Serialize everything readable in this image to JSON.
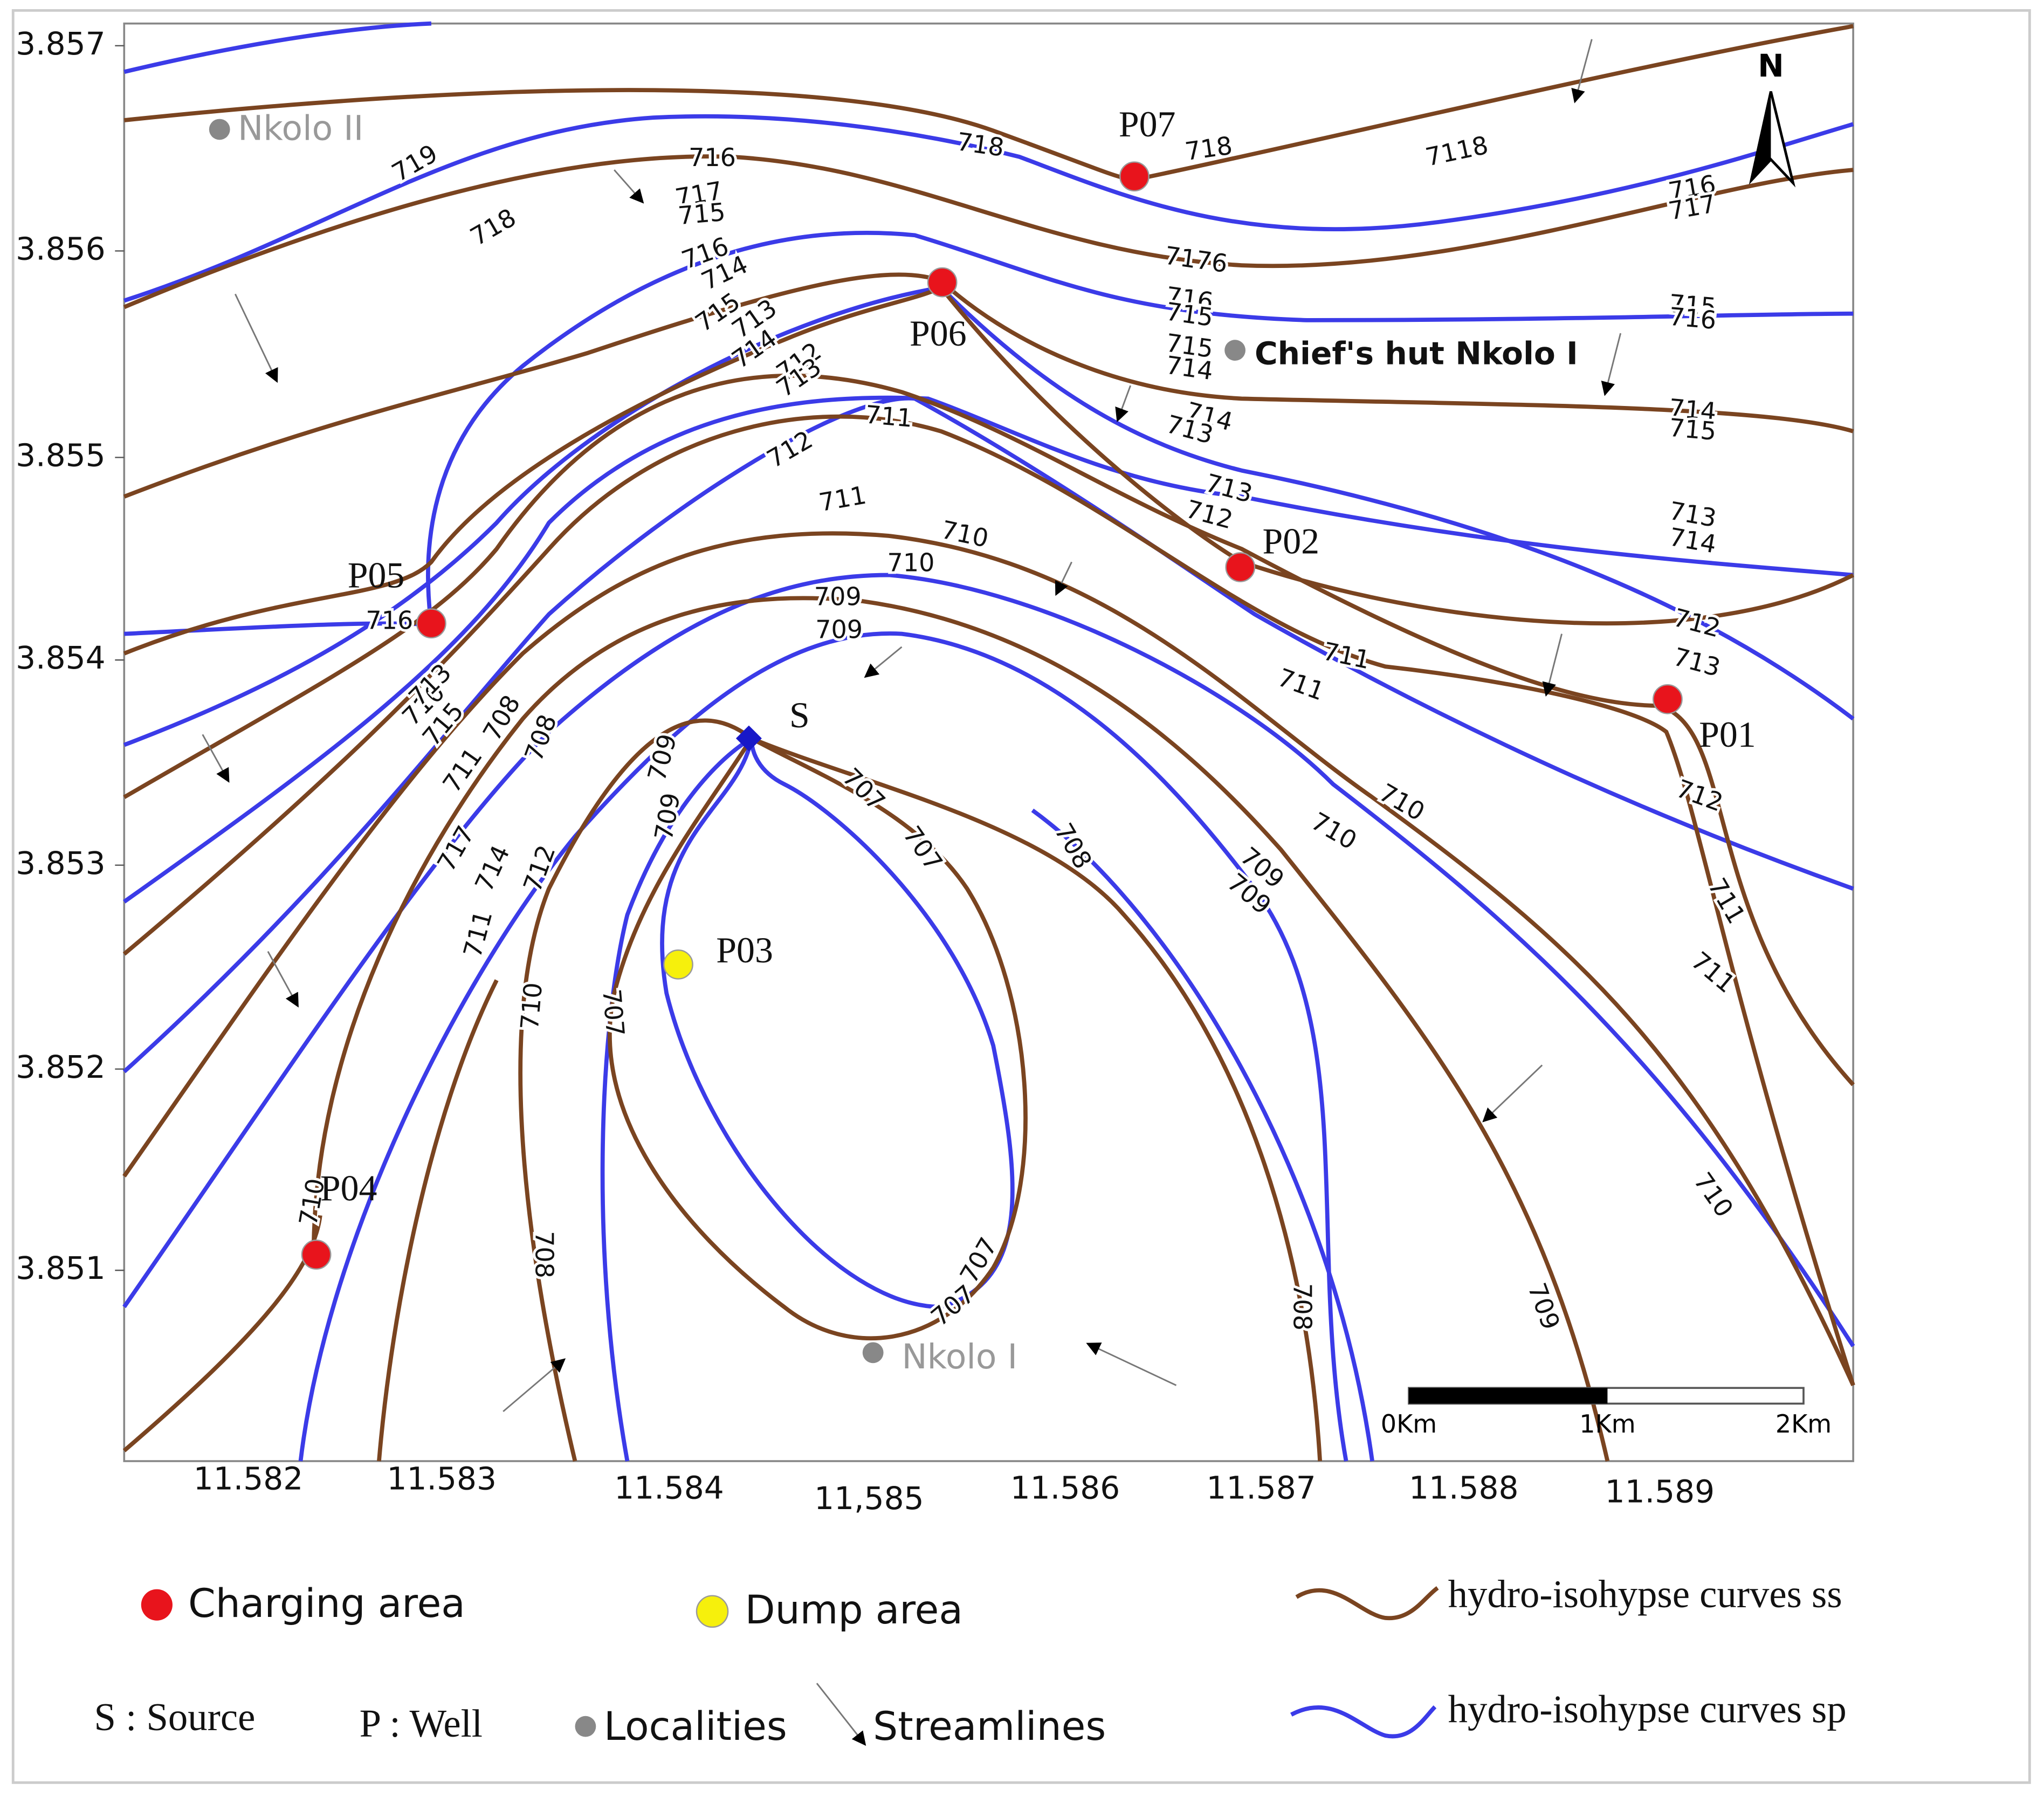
{
  "map": {
    "y_axis_labels": [
      "3.857",
      "3.856",
      "3.855",
      "3.854",
      "3.853",
      "3.852",
      "3.851"
    ],
    "x_axis_labels": [
      "11.582",
      "11.583",
      "11.584",
      "11,585",
      "11.586",
      "11.587",
      "11.588",
      "11.589"
    ],
    "localities": [
      "Nkolo II",
      "Chief's hut Nkolo I",
      "Nkolo I"
    ],
    "wells": [
      "P07",
      "P06",
      "P02",
      "P01",
      "P05",
      "P04",
      "P03"
    ],
    "source": "S",
    "north": "N",
    "scale": [
      "0Km",
      "1Km",
      "2Km"
    ],
    "contour_labels": [
      "719",
      "718",
      "718",
      "718",
      "7118",
      "716",
      "717",
      "715",
      "716",
      "714",
      "715",
      "713",
      "714",
      "712",
      "713",
      "712",
      "711",
      "711",
      "710",
      "710",
      "709",
      "709",
      "7176",
      "716",
      "715",
      "715",
      "714",
      "714",
      "713",
      "713",
      "712",
      "711",
      "711",
      "712",
      "713",
      "712",
      "711",
      "711",
      "710",
      "710",
      "709",
      "709",
      "708",
      "707",
      "707",
      "708",
      "708",
      "711",
      "710",
      "713",
      "716",
      "715",
      "717",
      "714",
      "712",
      "711",
      "710",
      "709",
      "709",
      "707",
      "708",
      "710",
      "707",
      "707",
      "708",
      "709",
      "710",
      "716",
      "717",
      "715",
      "716",
      "714",
      "715",
      "713",
      "714"
    ]
  },
  "legend": {
    "charging": "Charging area",
    "dump": "Dump area",
    "ss": "hydro-isohypse curves ss",
    "sp": "hydro-isohypse curves sp",
    "source": "S : Source",
    "well": "P : Well",
    "localities": "Localities",
    "streamlines": "Streamlines"
  }
}
